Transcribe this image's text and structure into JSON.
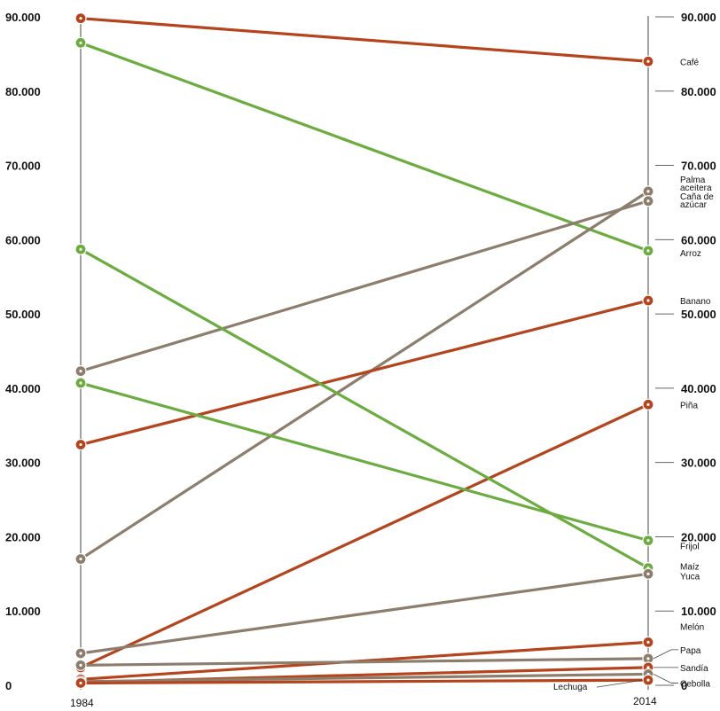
{
  "chart_data": {
    "type": "line",
    "chart_style": "slope",
    "x": [
      "1984",
      "2014"
    ],
    "ylim": [
      0,
      90000
    ],
    "y_ticks": [
      "0",
      "10.000",
      "20.000",
      "30.000",
      "40.000",
      "50.000",
      "60.000",
      "70.000",
      "80.000",
      "90.000"
    ],
    "colors": {
      "red": "#b5431b",
      "green": "#6aad3e",
      "brown": "#8c7d6c"
    },
    "series": [
      {
        "name": "Café",
        "values": [
          89800,
          84000
        ],
        "color": "red"
      },
      {
        "name": "Arroz",
        "values": [
          86500,
          58500
        ],
        "color": "green"
      },
      {
        "name": "Palma aceitera",
        "values": [
          17000,
          66500
        ],
        "color": "brown"
      },
      {
        "name": "Caña de azúcar",
        "values": [
          42300,
          65200
        ],
        "color": "brown"
      },
      {
        "name": "Banano",
        "values": [
          32400,
          51800
        ],
        "color": "red"
      },
      {
        "name": "Piña",
        "values": [
          2400,
          37800
        ],
        "color": "red"
      },
      {
        "name": "Frijol",
        "values": [
          40700,
          19500
        ],
        "color": "green"
      },
      {
        "name": "Maíz",
        "values": [
          58700,
          15800
        ],
        "color": "green"
      },
      {
        "name": "Yuca",
        "values": [
          4300,
          15000
        ],
        "color": "brown"
      },
      {
        "name": "Melón",
        "values": [
          800,
          5800
        ],
        "color": "red"
      },
      {
        "name": "Papa",
        "values": [
          2700,
          3600
        ],
        "color": "brown"
      },
      {
        "name": "Sandía",
        "values": [
          400,
          2400
        ],
        "color": "red"
      },
      {
        "name": "Cebolla",
        "values": [
          500,
          1500
        ],
        "color": "brown"
      },
      {
        "name": "Lechuga",
        "values": [
          300,
          700
        ],
        "color": "red"
      }
    ],
    "labels": [
      {
        "series": "Café",
        "text": [
          "Café"
        ]
      },
      {
        "series": "Arroz",
        "text": [
          "Arroz"
        ]
      },
      {
        "series": "Palma aceitera",
        "text": [
          "Palma",
          "aceitera"
        ]
      },
      {
        "series": "Caña de azúcar",
        "text": [
          "Caña de",
          "azúcar"
        ]
      },
      {
        "series": "Banano",
        "text": [
          "Banano"
        ]
      },
      {
        "series": "Piña",
        "text": [
          "Piña"
        ]
      },
      {
        "series": "Frijol",
        "text": [
          "Frijol"
        ]
      },
      {
        "series": "Maíz",
        "text": [
          "Maíz"
        ]
      },
      {
        "series": "Yuca",
        "text": [
          "Yuca"
        ]
      },
      {
        "series": "Melón",
        "text": [
          "Melón"
        ]
      },
      {
        "series": "Papa",
        "text": [
          "Papa"
        ]
      },
      {
        "series": "Sandía",
        "text": [
          "Sandía"
        ]
      },
      {
        "series": "Cebolla",
        "text": [
          "Cebolla"
        ]
      },
      {
        "series": "Lechuga",
        "text": [
          "Lechuga"
        ]
      }
    ]
  }
}
